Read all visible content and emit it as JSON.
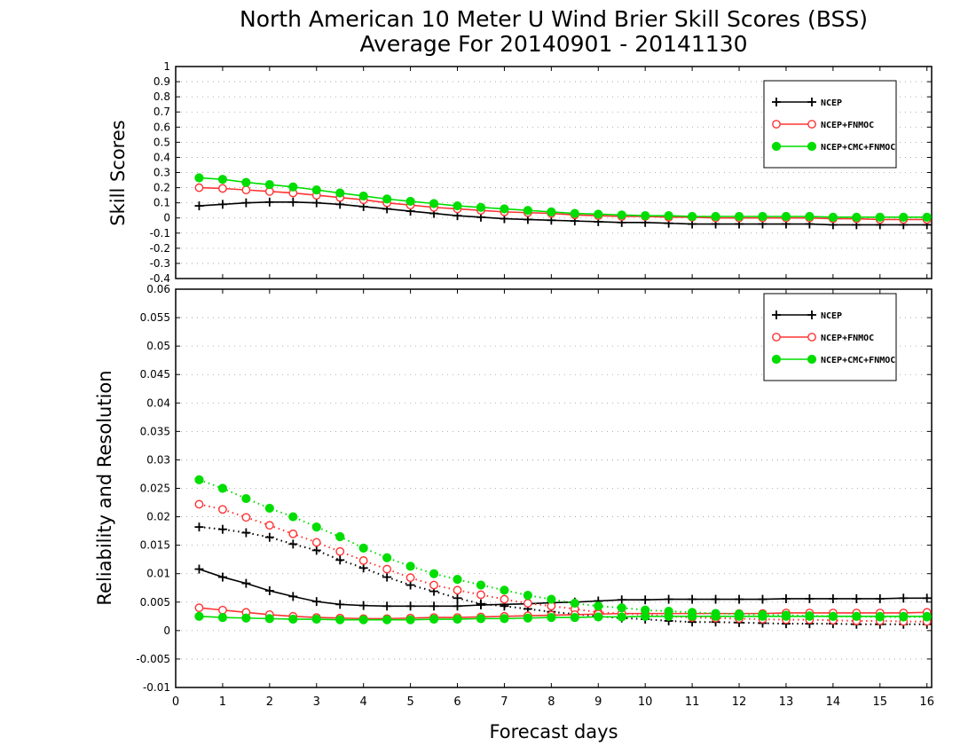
{
  "chart_data": {
    "title_line1": "North American 10 Meter U Wind Brier Skill Scores (BSS)",
    "title_line2": "Average For 20140901 - 20141130",
    "xlabel": "Forecast days",
    "x_ticks": [
      0,
      1,
      2,
      3,
      4,
      5,
      6,
      7,
      8,
      9,
      10,
      11,
      12,
      13,
      14,
      15,
      16
    ],
    "xlim": [
      0,
      16.1
    ],
    "colors": {
      "NCEP": "#000000",
      "NCEP+FNMOC": "#ff3333",
      "NCEP+CMC+FNMOC": "#00dd00"
    },
    "x": [
      0.5,
      1,
      1.5,
      2,
      2.5,
      3,
      3.5,
      4,
      4.5,
      5,
      5.5,
      6,
      6.5,
      7,
      7.5,
      8,
      8.5,
      9,
      9.5,
      10,
      10.5,
      11,
      11.5,
      12,
      12.5,
      13,
      13.5,
      14,
      14.5,
      15,
      15.5,
      16
    ],
    "panels": [
      {
        "type": "line",
        "ylabel": "Skill Scores",
        "ylim": [
          -0.4,
          1
        ],
        "y_ticks": [
          "-0.4",
          "-0.3",
          "-0.2",
          "-0.1",
          "0",
          "0.1",
          "0.2",
          "0.3",
          "0.4",
          "0.5",
          "0.6",
          "0.7",
          "0.8",
          "0.9",
          "1"
        ],
        "grid": true,
        "legend": "top-right",
        "series": [
          {
            "name": "NCEP",
            "style": "solid",
            "marker": "plus",
            "values": [
              0.08,
              0.09,
              0.1,
              0.105,
              0.105,
              0.1,
              0.09,
              0.075,
              0.06,
              0.045,
              0.03,
              0.015,
              0.005,
              -0.005,
              -0.01,
              -0.015,
              -0.02,
              -0.025,
              -0.03,
              -0.03,
              -0.035,
              -0.04,
              -0.04,
              -0.04,
              -0.04,
              -0.04,
              -0.04,
              -0.045,
              -0.045,
              -0.045,
              -0.045,
              -0.045
            ]
          },
          {
            "name": "NCEP+FNMOC",
            "style": "solid",
            "marker": "open-circle",
            "values": [
              0.2,
              0.195,
              0.185,
              0.175,
              0.165,
              0.15,
              0.135,
              0.12,
              0.1,
              0.085,
              0.07,
              0.06,
              0.05,
              0.04,
              0.035,
              0.03,
              0.02,
              0.015,
              0.01,
              0.01,
              0.005,
              0.005,
              0.0,
              0.0,
              0.0,
              0.0,
              0.0,
              -0.005,
              -0.005,
              -0.01,
              -0.01,
              -0.01
            ]
          },
          {
            "name": "NCEP+CMC+FNMOC",
            "style": "solid",
            "marker": "filled-circle",
            "values": [
              0.265,
              0.255,
              0.235,
              0.22,
              0.205,
              0.185,
              0.165,
              0.145,
              0.125,
              0.11,
              0.095,
              0.08,
              0.07,
              0.06,
              0.05,
              0.04,
              0.03,
              0.025,
              0.02,
              0.015,
              0.015,
              0.01,
              0.01,
              0.01,
              0.01,
              0.01,
              0.01,
              0.005,
              0.005,
              0.005,
              0.005,
              0.005
            ]
          }
        ]
      },
      {
        "type": "line",
        "ylabel": "Reliability and Resolution",
        "ylim": [
          -0.01,
          0.06
        ],
        "y_ticks": [
          "-0.01",
          "-0.005",
          "0",
          "0.005",
          "0.01",
          "0.015",
          "0.02",
          "0.025",
          "0.03",
          "0.035",
          "0.04",
          "0.045",
          "0.05",
          "0.055",
          "0.06"
        ],
        "grid": true,
        "legend": "top-right",
        "legend_entries": [
          "NCEP",
          "NCEP+FNMOC",
          "NCEP+CMC+FNMOC"
        ],
        "series": [
          {
            "name": "NCEP",
            "group": "NCEP",
            "style": "dotted",
            "marker": "plus",
            "values": [
              0.0182,
              0.0178,
              0.0172,
              0.0164,
              0.0152,
              0.0141,
              0.0124,
              0.011,
              0.0094,
              0.008,
              0.0069,
              0.0057,
              0.0047,
              0.0043,
              0.0038,
              0.0033,
              0.0029,
              0.0025,
              0.0022,
              0.002,
              0.0017,
              0.0015,
              0.0015,
              0.0014,
              0.0013,
              0.0012,
              0.0012,
              0.0012,
              0.0011,
              0.0011,
              0.0011,
              0.0011
            ]
          },
          {
            "name": "NCEP",
            "group": "NCEP",
            "style": "solid",
            "marker": "plus",
            "values": [
              0.0108,
              0.0094,
              0.0083,
              0.007,
              0.006,
              0.0051,
              0.0046,
              0.0044,
              0.0043,
              0.0043,
              0.0043,
              0.0043,
              0.0045,
              0.0046,
              0.0047,
              0.0049,
              0.005,
              0.0052,
              0.0054,
              0.0054,
              0.0055,
              0.0055,
              0.0055,
              0.0055,
              0.0055,
              0.0056,
              0.0056,
              0.0056,
              0.0056,
              0.0056,
              0.0057,
              0.0057
            ]
          },
          {
            "name": "NCEP+FNMOC",
            "group": "NCEP+FNMOC",
            "style": "dotted",
            "marker": "open-circle",
            "values": [
              0.0222,
              0.0213,
              0.0199,
              0.0185,
              0.017,
              0.0155,
              0.0139,
              0.0123,
              0.0108,
              0.0093,
              0.008,
              0.0071,
              0.0063,
              0.0055,
              0.0048,
              0.0043,
              0.0038,
              0.0032,
              0.003,
              0.0028,
              0.0025,
              0.0023,
              0.0022,
              0.0021,
              0.002,
              0.0019,
              0.0019,
              0.0018,
              0.0017,
              0.0017,
              0.0016,
              0.0016
            ]
          },
          {
            "name": "NCEP+FNMOC",
            "group": "NCEP+FNMOC",
            "style": "solid",
            "marker": "open-circle",
            "values": [
              0.004,
              0.0036,
              0.0032,
              0.0028,
              0.0025,
              0.0023,
              0.0022,
              0.0021,
              0.0021,
              0.0022,
              0.0023,
              0.0023,
              0.0024,
              0.0025,
              0.0026,
              0.0027,
              0.0028,
              0.0029,
              0.003,
              0.003,
              0.003,
              0.003,
              0.003,
              0.003,
              0.003,
              0.0031,
              0.0031,
              0.0031,
              0.0031,
              0.0031,
              0.0031,
              0.0032
            ]
          },
          {
            "name": "NCEP+CMC+FNMOC",
            "group": "NCEP+CMC+FNMOC",
            "style": "dotted",
            "marker": "filled-circle",
            "values": [
              0.0265,
              0.025,
              0.0232,
              0.0215,
              0.02,
              0.0182,
              0.0165,
              0.0145,
              0.0128,
              0.0113,
              0.01,
              0.009,
              0.008,
              0.0071,
              0.0062,
              0.0055,
              0.0048,
              0.0043,
              0.004,
              0.0036,
              0.0034,
              0.0032,
              0.003,
              0.0029,
              0.0028,
              0.0027,
              0.0026,
              0.0025,
              0.0025,
              0.0024,
              0.0024,
              0.0024
            ]
          },
          {
            "name": "NCEP+CMC+FNMOC",
            "group": "NCEP+CMC+FNMOC",
            "style": "solid",
            "marker": "filled-circle",
            "values": [
              0.0025,
              0.0023,
              0.0022,
              0.0021,
              0.002,
              0.002,
              0.0019,
              0.0019,
              0.0019,
              0.0019,
              0.002,
              0.002,
              0.0021,
              0.0021,
              0.0022,
              0.0023,
              0.0023,
              0.0024,
              0.0024,
              0.0025,
              0.0025,
              0.0025,
              0.0025,
              0.0025,
              0.0025,
              0.0025,
              0.0025,
              0.0025,
              0.0025,
              0.0025,
              0.0025,
              0.0025
            ]
          }
        ]
      }
    ]
  }
}
